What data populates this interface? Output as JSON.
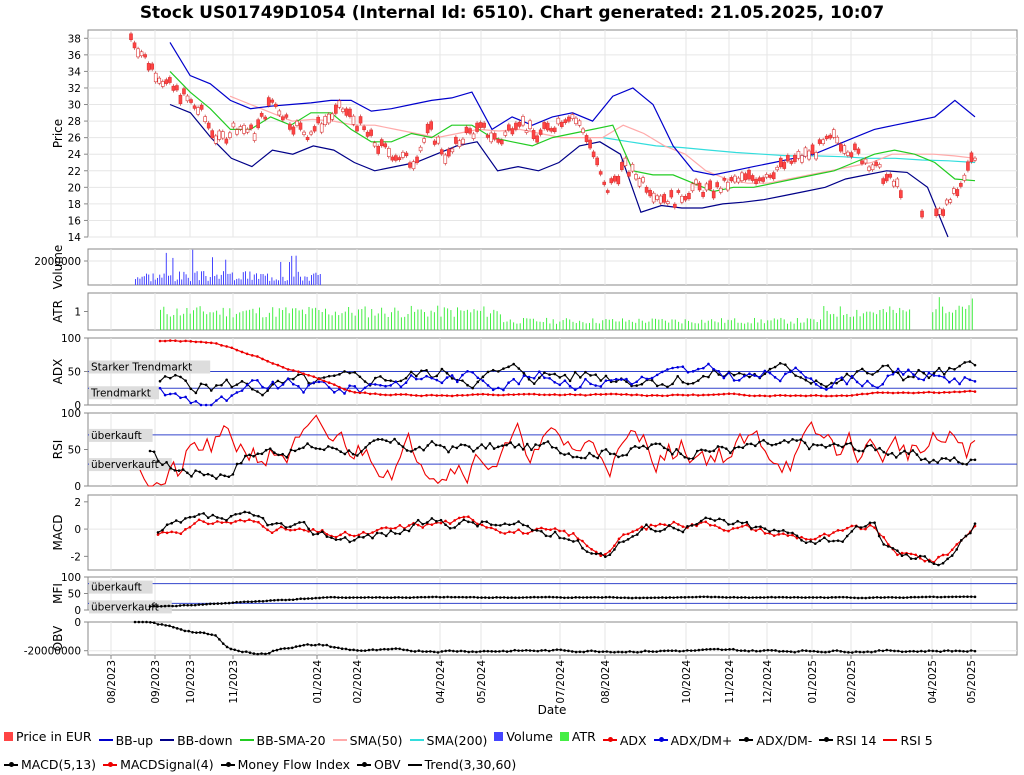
{
  "title": "Stock US01749D1054 (Internal Id: 6510). Chart generated: 21.05.2025, 10:07",
  "xlabel": "Date",
  "x_ticks": [
    "08/2023",
    "09/2023",
    "10/2023",
    "11/2023",
    "01/2024",
    "02/2024",
    "04/2024",
    "05/2024",
    "07/2024",
    "08/2024",
    "10/2024",
    "11/2024",
    "12/2024",
    "01/2025",
    "02/2025",
    "04/2025",
    "05/2025"
  ],
  "panels": {
    "price": {
      "ylabel": "Price",
      "ticks": [
        "38",
        "36",
        "34",
        "32",
        "30",
        "28",
        "26",
        "24",
        "22",
        "20",
        "18",
        "16",
        "14"
      ]
    },
    "volume": {
      "ylabel": "Volume",
      "ticks": [
        "2000000"
      ]
    },
    "atr": {
      "ylabel": "ATR",
      "ticks": [
        "1"
      ]
    },
    "adx": {
      "ylabel": "ADX",
      "ticks": [
        "100",
        "50",
        "0"
      ],
      "annotations": [
        "Starker Trendmarkt",
        "Trendmarkt"
      ]
    },
    "rsi": {
      "ylabel": "RSI",
      "ticks": [
        "100",
        "50",
        "0"
      ],
      "annotations": [
        "überkauft",
        "überverkauft"
      ]
    },
    "macd": {
      "ylabel": "MACD",
      "ticks": [
        "2",
        "0",
        "-2"
      ]
    },
    "mfi": {
      "ylabel": "MFI",
      "ticks": [
        "100",
        "50",
        "0"
      ],
      "annotations": [
        "überkauft",
        "überverkauft"
      ]
    },
    "obv": {
      "ylabel": "OBV",
      "ticks": [
        "0",
        "-20000000"
      ]
    }
  },
  "legend": [
    {
      "label": "Price in EUR",
      "color": "#ff4444",
      "kind": "box"
    },
    {
      "label": "BB-up",
      "color": "#0000cc",
      "kind": "line"
    },
    {
      "label": "BB-down",
      "color": "#000088",
      "kind": "line"
    },
    {
      "label": "BB-SMA-20",
      "color": "#22cc22",
      "kind": "line"
    },
    {
      "label": "SMA(50)",
      "color": "#ffaaaa",
      "kind": "line"
    },
    {
      "label": "SMA(200)",
      "color": "#33dddd",
      "kind": "line"
    },
    {
      "label": "Volume",
      "color": "#4444ff",
      "kind": "box"
    },
    {
      "label": "ATR",
      "color": "#44ee44",
      "kind": "box"
    },
    {
      "label": "ADX",
      "color": "#ee0000",
      "kind": "dotline"
    },
    {
      "label": "ADX/DM+",
      "color": "#0000dd",
      "kind": "dotline"
    },
    {
      "label": "ADX/DM-",
      "color": "#000000",
      "kind": "dotline"
    },
    {
      "label": "RSI 14",
      "color": "#000000",
      "kind": "dotline"
    },
    {
      "label": "RSI 5",
      "color": "#ee0000",
      "kind": "line"
    },
    {
      "label": "MACD(5,13)",
      "color": "#000000",
      "kind": "dotline"
    },
    {
      "label": "MACDSignal(4)",
      "color": "#ee0000",
      "kind": "dotline"
    },
    {
      "label": "Money Flow Index",
      "color": "#000000",
      "kind": "dotline"
    },
    {
      "label": "OBV",
      "color": "#000000",
      "kind": "dotline"
    },
    {
      "label": "Trend(3,30,60)",
      "color": "#000000",
      "kind": "line"
    }
  ],
  "chart_data": {
    "type": "line",
    "x_range": [
      "2023-08",
      "2025-05"
    ],
    "price": {
      "ylim": [
        14,
        39
      ],
      "close": [
        38.2,
        35,
        32.5,
        31,
        29,
        25.5,
        27.5,
        26.5,
        30.5,
        28,
        26.5,
        28,
        29.5,
        27.5,
        25,
        24,
        23,
        27,
        23.5,
        26.5,
        27,
        25.5,
        28.5,
        26,
        27.5,
        29,
        26,
        19.5,
        22.5,
        21,
        19,
        18.5,
        20,
        19.5,
        20.5,
        21,
        21.5,
        22.5,
        23.5,
        24.5,
        26,
        24.5,
        23,
        21,
        19.5,
        17,
        16.5,
        19.5,
        24
      ],
      "bb_up": [
        37.5,
        33.5,
        32.5,
        30.5,
        29.5,
        29.8,
        30,
        30.2,
        30.5,
        30.5,
        29.2,
        29.5,
        30,
        30.5,
        30.8,
        31.5,
        27,
        28.5,
        27.5,
        28.5,
        29,
        28,
        31,
        32,
        30,
        25,
        22,
        21.5,
        22,
        22.5,
        23,
        23.5,
        24,
        25,
        26,
        27,
        27.5,
        28,
        28.5,
        30.5,
        28.5
      ],
      "bb_down": [
        30,
        29,
        26,
        23.5,
        22.5,
        24.5,
        24,
        25,
        24.5,
        23,
        22,
        22.5,
        23,
        24,
        25,
        25.5,
        22,
        22.5,
        22,
        23,
        25,
        25.5,
        24,
        17,
        17.8,
        17.5,
        17.5,
        18,
        18.2,
        18.5,
        19,
        19.5,
        20,
        21,
        21.5,
        22,
        21.8,
        20,
        14
      ],
      "bb_sma20": [
        34,
        31.5,
        29.5,
        27,
        27,
        28.5,
        27.5,
        29,
        29,
        27,
        25.5,
        25.5,
        26.5,
        26,
        27.5,
        27.5,
        26,
        25.5,
        25,
        26,
        26.5,
        27,
        27.5,
        22,
        21.5,
        21.5,
        20.5,
        19.5,
        20,
        20,
        20.5,
        21,
        21.5,
        22,
        23,
        24,
        24.5,
        24,
        23,
        21,
        20.8
      ],
      "sma50": [
        31,
        30,
        29,
        28,
        28.2,
        28,
        27.5,
        27.5,
        27,
        26.5,
        26,
        26.5,
        27,
        26.8,
        27,
        26.5,
        26,
        26,
        26,
        27.5,
        26.5,
        25,
        24,
        22,
        21,
        20.5,
        20.5,
        21,
        21.5,
        22,
        22.5,
        23,
        24,
        24,
        24,
        23.8,
        23.5
      ],
      "sma200": [
        26,
        25.5,
        25,
        24.8,
        24.5,
        24.2,
        24,
        23.8,
        23.8,
        23.7,
        23.5,
        23.5,
        23.3,
        23.2,
        23
      ]
    },
    "volume": {
      "ylim": [
        0,
        3000000
      ],
      "note": "bars only in 09/2023–01/2024, peaks near 3000000"
    },
    "atr": {
      "ylim": [
        0,
        2
      ]
    },
    "adx": {
      "ylim": [
        0,
        100
      ],
      "levels": [
        50,
        25
      ]
    },
    "rsi": {
      "ylim": [
        0,
        100
      ],
      "levels": [
        70,
        30
      ]
    },
    "macd": {
      "ylim": [
        -3,
        2.5
      ]
    },
    "mfi": {
      "ylim": [
        0,
        100
      ],
      "levels": [
        80,
        20
      ]
    },
    "obv": {
      "ylim": [
        -23000000,
        0
      ]
    }
  }
}
